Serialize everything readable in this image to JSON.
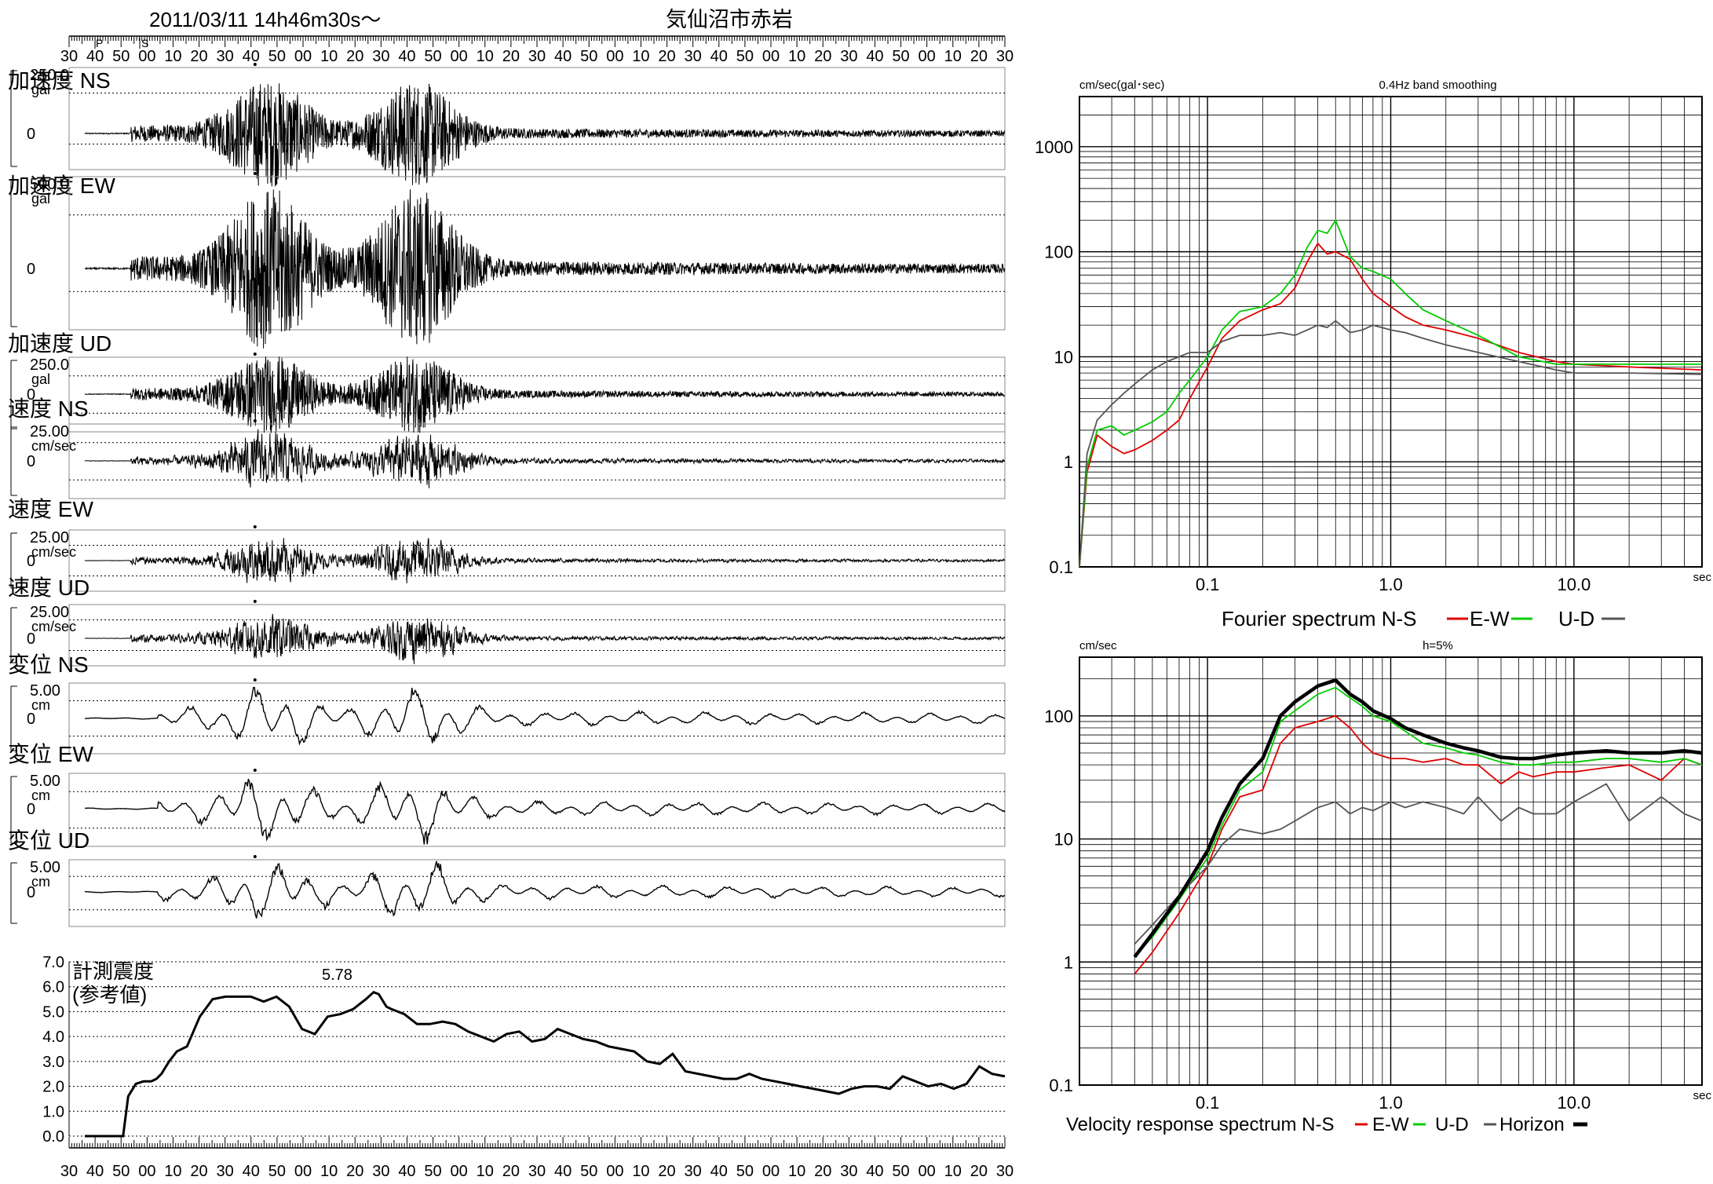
{
  "header": {
    "datetime": "2011/03/11  14h46m30s～",
    "station": "気仙沼市赤岩"
  },
  "time_ticks": [
    "30",
    "40",
    "50",
    "00",
    "10",
    "20",
    "30",
    "40",
    "50",
    "00",
    "10",
    "20",
    "30",
    "40",
    "50",
    "00",
    "10",
    "20",
    "30",
    "40",
    "50",
    "00",
    "10",
    "20",
    "30",
    "40",
    "50",
    "00",
    "10",
    "20",
    "30",
    "40",
    "50",
    "00",
    "10",
    "20",
    "30"
  ],
  "phase_marks": {
    "p": "P",
    "s": "S"
  },
  "waveforms": [
    {
      "id": "acc-ns",
      "title": "加速度 NS",
      "scale": "250.0",
      "unit": "gal",
      "zero": "0",
      "peak_pos": 0.3,
      "peak2_pos": 0.44,
      "envelope": "acc"
    },
    {
      "id": "acc-ew",
      "title": "加速度 EW",
      "scale": "500.0",
      "unit": "gal",
      "zero": "0",
      "peak_pos": 0.3,
      "peak2_pos": 0.44,
      "envelope": "acc"
    },
    {
      "id": "acc-ud",
      "title": "加速度 UD",
      "scale": "250.0",
      "unit": "gal",
      "zero": "0",
      "peak_pos": 0.3,
      "peak2_pos": 0.44,
      "envelope": "acc"
    },
    {
      "id": "vel-ns",
      "title": "速度 NS",
      "scale": "25.00",
      "unit": "cm/sec",
      "zero": "0",
      "peak_pos": 0.3,
      "peak2_pos": 0.44,
      "envelope": "vel"
    },
    {
      "id": "vel-ew",
      "title": "速度 EW",
      "scale": "25.00",
      "unit": "cm/sec",
      "zero": "0",
      "peak_pos": 0.3,
      "peak2_pos": 0.44,
      "envelope": "vel"
    },
    {
      "id": "vel-ud",
      "title": "速度 UD",
      "scale": "25.00",
      "unit": "cm/sec",
      "zero": "0",
      "peak_pos": 0.3,
      "peak2_pos": 0.44,
      "envelope": "vel"
    },
    {
      "id": "dis-ns",
      "title": "変位 NS",
      "scale": "5.00",
      "unit": "cm",
      "zero": "0",
      "peak_pos": 0.3,
      "peak2_pos": 0.44,
      "envelope": "dis"
    },
    {
      "id": "dis-ew",
      "title": "変位 EW",
      "scale": "5.00",
      "unit": "cm",
      "zero": "0",
      "peak_pos": 0.3,
      "peak2_pos": 0.44,
      "envelope": "dis"
    },
    {
      "id": "dis-ud",
      "title": "変位 UD",
      "scale": "5.00",
      "unit": "cm",
      "zero": "0",
      "peak_pos": 0.3,
      "peak2_pos": 0.44,
      "envelope": "dis"
    }
  ],
  "intensity": {
    "title": "計測震度",
    "subtitle": "(参考値)",
    "max_label": "5.78",
    "y_ticks": [
      "7.0",
      "6.0",
      "5.0",
      "4.0",
      "3.0",
      "2.0",
      "1.0",
      "0.0"
    ],
    "chart_data": {
      "type": "line",
      "x_unit": "seconds from 14h46m30s",
      "ylim": [
        0,
        7
      ],
      "x": [
        0,
        5,
        10,
        14,
        15,
        17,
        20,
        23,
        26,
        28,
        30,
        33,
        36,
        40,
        45,
        50,
        55,
        60,
        65,
        70,
        75,
        80,
        85,
        90,
        95,
        100,
        105,
        110,
        113,
        115,
        118,
        120,
        125,
        130,
        135,
        140,
        145,
        150,
        155,
        160,
        165,
        170,
        175,
        180,
        185,
        190,
        195,
        200,
        205,
        210,
        215,
        220,
        225,
        230,
        235,
        240,
        245,
        250,
        255,
        260,
        265,
        270,
        275,
        280,
        285,
        290,
        295,
        300,
        305,
        310,
        315,
        320,
        325,
        330,
        335,
        340,
        345,
        350,
        355,
        360
      ],
      "y": [
        0,
        0,
        0,
        0,
        0,
        1.6,
        2.1,
        2.2,
        2.2,
        2.3,
        2.5,
        3.0,
        3.4,
        3.6,
        4.8,
        5.5,
        5.6,
        5.6,
        5.6,
        5.4,
        5.6,
        5.2,
        4.3,
        4.1,
        4.8,
        4.9,
        5.1,
        5.5,
        5.78,
        5.7,
        5.2,
        5.1,
        4.9,
        4.5,
        4.5,
        4.6,
        4.5,
        4.2,
        4.0,
        3.8,
        4.1,
        4.2,
        3.8,
        3.9,
        4.3,
        4.1,
        3.9,
        3.8,
        3.6,
        3.5,
        3.4,
        3.0,
        2.9,
        3.3,
        2.6,
        2.5,
        2.4,
        2.3,
        2.3,
        2.5,
        2.3,
        2.2,
        2.1,
        2.0,
        1.9,
        1.8,
        1.7,
        1.9,
        2.0,
        2.0,
        1.9,
        2.4,
        2.2,
        2.0,
        2.1,
        1.9,
        2.1,
        2.8,
        2.5,
        2.4
      ]
    }
  },
  "fourier": {
    "y_unit": "cm/sec(gal･sec)",
    "note": "0.4Hz band smoothing",
    "y_ticks": [
      "1000",
      "100",
      "10",
      "1",
      "0.1"
    ],
    "x_ticks": [
      "0.1",
      "1.0",
      "10.0"
    ],
    "x_unit": "sec",
    "legend": "Fourier spectrum  N-S",
    "legend_ew": "E-W",
    "legend_ud": "U-D",
    "chart_data": {
      "type": "line",
      "xscale": "log",
      "yscale": "log",
      "xlim": [
        0.02,
        50
      ],
      "ylim": [
        0.1,
        3000
      ],
      "series": [
        {
          "name": "N-S",
          "color": "#e00000",
          "x": [
            0.02,
            0.022,
            0.025,
            0.03,
            0.035,
            0.04,
            0.05,
            0.06,
            0.07,
            0.08,
            0.1,
            0.12,
            0.15,
            0.2,
            0.25,
            0.3,
            0.35,
            0.4,
            0.45,
            0.5,
            0.6,
            0.7,
            0.8,
            1.0,
            1.2,
            1.5,
            2.0,
            3.0,
            5.0,
            8.0,
            10,
            20,
            50
          ],
          "y": [
            0.1,
            0.8,
            1.8,
            1.4,
            1.2,
            1.3,
            1.6,
            2.0,
            2.5,
            4,
            8,
            15,
            22,
            28,
            32,
            45,
            80,
            120,
            95,
            100,
            85,
            55,
            40,
            30,
            24,
            20,
            18,
            15,
            11,
            9,
            8.5,
            8,
            7.5
          ]
        },
        {
          "name": "E-W",
          "color": "#00cc00",
          "x": [
            0.02,
            0.022,
            0.025,
            0.03,
            0.035,
            0.04,
            0.05,
            0.06,
            0.07,
            0.08,
            0.1,
            0.12,
            0.15,
            0.2,
            0.25,
            0.3,
            0.35,
            0.4,
            0.45,
            0.5,
            0.6,
            0.7,
            0.8,
            1.0,
            1.2,
            1.5,
            2.0,
            3.0,
            5.0,
            8.0,
            10,
            20,
            50
          ],
          "y": [
            0.1,
            0.9,
            2.0,
            2.2,
            1.8,
            2.0,
            2.4,
            3.0,
            4.5,
            6,
            10,
            18,
            27,
            30,
            40,
            60,
            110,
            160,
            150,
            200,
            90,
            70,
            65,
            55,
            40,
            28,
            22,
            16,
            10,
            8.5,
            8.5,
            8.5,
            8.5
          ]
        },
        {
          "name": "U-D",
          "color": "#555555",
          "x": [
            0.02,
            0.022,
            0.025,
            0.03,
            0.035,
            0.04,
            0.05,
            0.06,
            0.07,
            0.08,
            0.1,
            0.12,
            0.15,
            0.2,
            0.25,
            0.3,
            0.35,
            0.4,
            0.45,
            0.5,
            0.6,
            0.7,
            0.8,
            1.0,
            1.2,
            1.5,
            2.0,
            3.0,
            5.0,
            8.0,
            10,
            20,
            50
          ],
          "y": [
            0.1,
            1.2,
            2.5,
            3.5,
            4.5,
            5.5,
            7.5,
            9,
            10,
            11,
            11,
            14,
            16,
            16,
            17,
            16,
            18,
            20,
            19,
            22,
            17,
            18,
            20,
            18,
            17,
            15,
            13,
            11,
            9,
            7.5,
            7,
            7,
            6.8
          ]
        }
      ]
    }
  },
  "velocity": {
    "y_unit": "cm/sec",
    "note": "h=5%",
    "y_ticks": [
      "100",
      "10",
      "1",
      "0.1"
    ],
    "x_ticks": [
      "0.1",
      "1.0",
      "10.0"
    ],
    "x_unit": "sec",
    "legend": "Velocity response spectrum N-S",
    "legend_ew": "E-W",
    "legend_ud": "U-D",
    "legend_h": "Horizon",
    "chart_data": {
      "type": "line",
      "xscale": "log",
      "yscale": "log",
      "xlim": [
        0.02,
        50
      ],
      "ylim": [
        0.1,
        300
      ],
      "series": [
        {
          "name": "N-S",
          "color": "#e00000",
          "x": [
            0.04,
            0.05,
            0.07,
            0.1,
            0.12,
            0.15,
            0.2,
            0.25,
            0.3,
            0.4,
            0.5,
            0.6,
            0.7,
            0.8,
            1.0,
            1.2,
            1.5,
            2.0,
            2.5,
            3,
            4,
            5,
            6,
            8,
            10,
            15,
            20,
            30,
            40,
            50
          ],
          "y": [
            0.8,
            1.2,
            2.5,
            6,
            12,
            22,
            25,
            60,
            80,
            90,
            100,
            80,
            60,
            50,
            45,
            45,
            42,
            45,
            40,
            40,
            28,
            35,
            32,
            35,
            35,
            38,
            40,
            30,
            45,
            40
          ]
        },
        {
          "name": "E-W",
          "color": "#00cc00",
          "x": [
            0.04,
            0.05,
            0.07,
            0.1,
            0.12,
            0.15,
            0.2,
            0.25,
            0.3,
            0.4,
            0.5,
            0.6,
            0.7,
            0.8,
            1.0,
            1.2,
            1.5,
            2.0,
            2.5,
            3,
            4,
            5,
            6,
            8,
            10,
            15,
            20,
            30,
            40,
            50
          ],
          "y": [
            1.1,
            1.6,
            3.2,
            7,
            13,
            25,
            35,
            90,
            110,
            150,
            170,
            140,
            120,
            100,
            90,
            75,
            60,
            55,
            50,
            48,
            42,
            40,
            40,
            42,
            42,
            45,
            45,
            42,
            45,
            40
          ]
        },
        {
          "name": "U-D",
          "color": "#555555",
          "x": [
            0.04,
            0.05,
            0.07,
            0.1,
            0.12,
            0.15,
            0.2,
            0.25,
            0.3,
            0.4,
            0.5,
            0.6,
            0.7,
            0.8,
            1.0,
            1.2,
            1.5,
            2.0,
            2.5,
            3,
            4,
            5,
            6,
            8,
            10,
            15,
            20,
            30,
            40,
            50
          ],
          "y": [
            1.4,
            2.0,
            3.5,
            6,
            9,
            12,
            11,
            12,
            14,
            18,
            20,
            16,
            18,
            17,
            20,
            18,
            20,
            18,
            16,
            22,
            14,
            18,
            16,
            16,
            20,
            28,
            14,
            22,
            16,
            14
          ]
        },
        {
          "name": "Horizon",
          "color": "#000000",
          "x": [
            0.04,
            0.05,
            0.07,
            0.1,
            0.12,
            0.15,
            0.2,
            0.25,
            0.3,
            0.4,
            0.5,
            0.6,
            0.7,
            0.8,
            1.0,
            1.2,
            1.5,
            2.0,
            2.5,
            3,
            4,
            5,
            6,
            8,
            10,
            15,
            20,
            30,
            40,
            50
          ],
          "y": [
            1.1,
            1.7,
            3.4,
            8,
            15,
            28,
            45,
            100,
            130,
            175,
            195,
            150,
            130,
            110,
            95,
            80,
            70,
            60,
            55,
            52,
            46,
            45,
            45,
            48,
            50,
            52,
            50,
            50,
            52,
            50
          ]
        }
      ]
    }
  }
}
